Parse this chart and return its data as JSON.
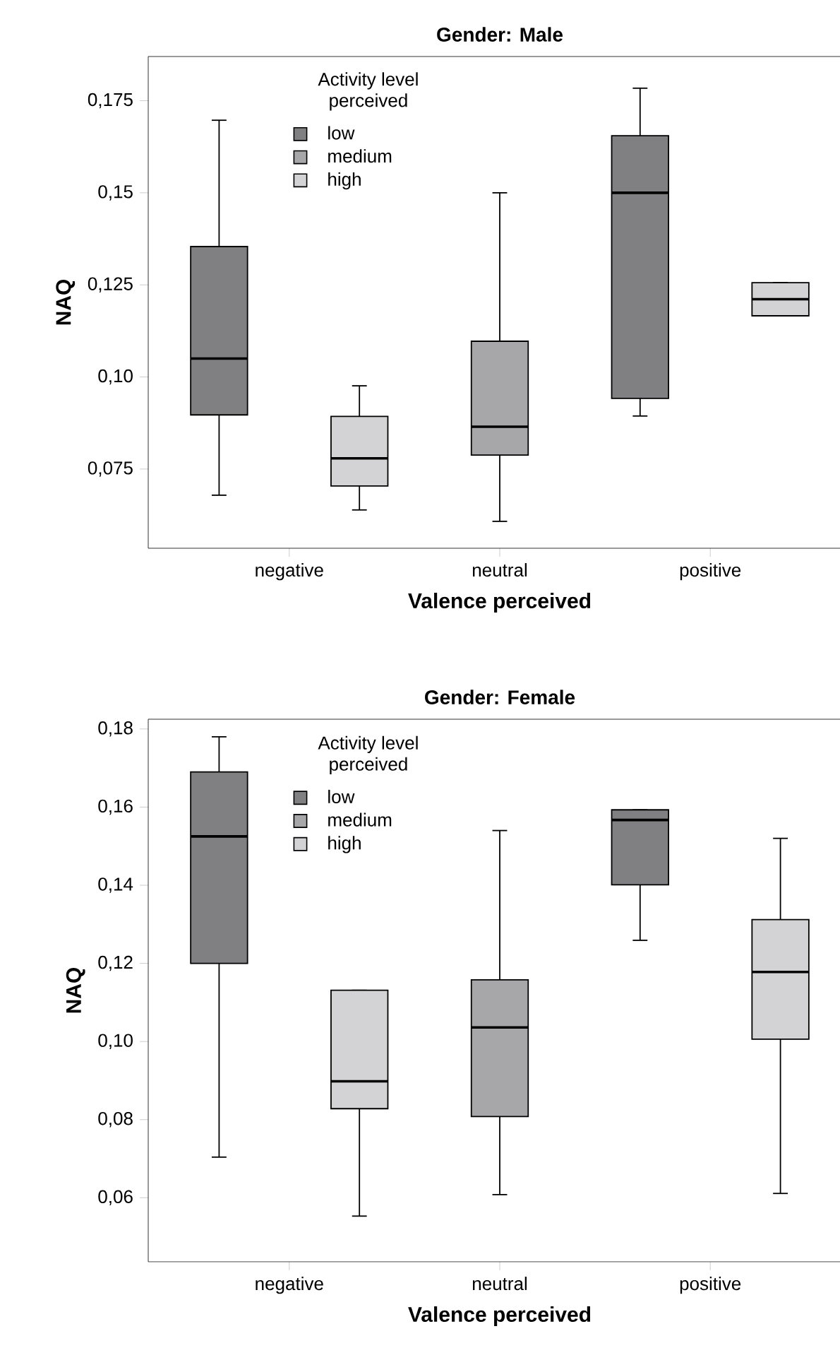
{
  "chart_data": [
    {
      "type": "box",
      "title": "Gender: Male",
      "xlabel": "Valence perceived",
      "ylabel": "NAQ",
      "legend_title": "Activity level perceived",
      "legend": "top left",
      "categories": [
        "negative",
        "neutral",
        "positive"
      ],
      "ylim": [
        0.0535,
        0.187
      ],
      "yticks": [
        {
          "value": 0.075,
          "label": "0,075"
        },
        {
          "value": 0.1,
          "label": "0,10"
        },
        {
          "value": 0.125,
          "label": "0,125"
        },
        {
          "value": 0.15,
          "label": "0,15"
        },
        {
          "value": 0.175,
          "label": "0,175"
        }
      ],
      "series": [
        {
          "name": "low",
          "color": "#808083",
          "boxes": [
            {
              "low": 0.0679,
              "q1": 0.0897,
              "median": 0.105,
              "q3": 0.1354,
              "high": 0.1697
            },
            null,
            {
              "low": 0.0894,
              "q1": 0.0942,
              "median": 0.15,
              "q3": 0.1655,
              "high": 0.1784
            }
          ]
        },
        {
          "name": "medium",
          "color": "#a7a7aa",
          "boxes": [
            null,
            {
              "low": 0.0608,
              "q1": 0.0788,
              "median": 0.0865,
              "q3": 0.1097,
              "high": 0.15
            },
            null
          ]
        },
        {
          "name": "high",
          "color": "#d3d3d5",
          "boxes": [
            {
              "low": 0.0639,
              "q1": 0.0704,
              "median": 0.0779,
              "q3": 0.0893,
              "high": 0.0976
            },
            null,
            {
              "low": 0.1166,
              "q1": 0.1166,
              "median": 0.1211,
              "q3": 0.1256,
              "high": 0.1256
            }
          ]
        }
      ]
    },
    {
      "type": "box",
      "title": "Gender: Female",
      "xlabel": "Valence perceived",
      "ylabel": "NAQ",
      "legend_title": "Activity level perceived",
      "legend": "top left",
      "categories": [
        "negative",
        "neutral",
        "positive"
      ],
      "ylim": [
        0.0436,
        0.1825
      ],
      "yticks": [
        {
          "value": 0.06,
          "label": "0,06"
        },
        {
          "value": 0.08,
          "label": "0,08"
        },
        {
          "value": 0.1,
          "label": "0,10"
        },
        {
          "value": 0.12,
          "label": "0,12"
        },
        {
          "value": 0.14,
          "label": "0,14"
        },
        {
          "value": 0.16,
          "label": "0,16"
        },
        {
          "value": 0.18,
          "label": "0,18"
        }
      ],
      "series": [
        {
          "name": "low",
          "color": "#808083",
          "boxes": [
            {
              "low": 0.0704,
              "q1": 0.12,
              "median": 0.1525,
              "q3": 0.169,
              "high": 0.178
            },
            null,
            {
              "low": 0.1259,
              "q1": 0.1401,
              "median": 0.1567,
              "q3": 0.1593,
              "high": 0.1593
            }
          ]
        },
        {
          "name": "medium",
          "color": "#a7a7aa",
          "boxes": [
            null,
            {
              "low": 0.0608,
              "q1": 0.0808,
              "median": 0.1036,
              "q3": 0.1158,
              "high": 0.154
            },
            null
          ]
        },
        {
          "name": "high",
          "color": "#d3d3d5",
          "boxes": [
            {
              "low": 0.0553,
              "q1": 0.0828,
              "median": 0.0898,
              "q3": 0.1131,
              "high": 0.1131
            },
            null,
            {
              "low": 0.0611,
              "q1": 0.1006,
              "median": 0.1178,
              "q3": 0.1312,
              "high": 0.152
            }
          ]
        }
      ]
    }
  ]
}
